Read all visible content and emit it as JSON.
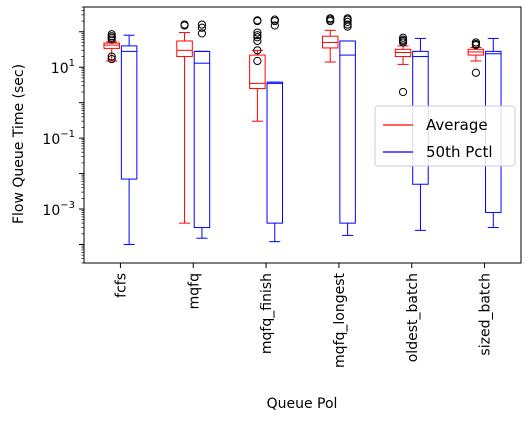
{
  "chart_data": {
    "type": "boxplot",
    "title": "",
    "xlabel": "Queue Pol",
    "ylabel": "Flow Queue Time (sec)",
    "yscale": "log",
    "ylim": [
      3e-05,
      500
    ],
    "ytick_values": [
      0.001,
      0.1,
      10
    ],
    "ytick_labels": [
      {
        "base": "10",
        "exp": "−3"
      },
      {
        "base": "10",
        "exp": "−1"
      },
      {
        "base": "10",
        "exp": "1"
      }
    ],
    "categories": [
      "fcfs",
      "mqfq",
      "mqfq_finish",
      "mqfq_longest",
      "oldest_batch",
      "sized_batch"
    ],
    "legend": {
      "position": "center-right"
    },
    "series": [
      {
        "name": "Average",
        "color": "#ff0000",
        "boxes": [
          {
            "whislo": 15,
            "q1": 34,
            "med": 42,
            "q3": 48,
            "whishi": 52,
            "fliers": [
              17,
              20,
              60,
              68,
              75,
              85
            ]
          },
          {
            "whislo": 0.0004,
            "q1": 20,
            "med": 30,
            "q3": 55,
            "whishi": 95,
            "fliers": [
              150,
              160
            ]
          },
          {
            "whislo": 0.3,
            "q1": 2.5,
            "med": 3.5,
            "q3": 22,
            "whishi": 30,
            "fliers": [
              15,
              30,
              55,
              70,
              80,
              95,
              200,
              210
            ]
          },
          {
            "whislo": 14,
            "q1": 35,
            "med": 50,
            "q3": 75,
            "whishi": 110,
            "fliers": [
              200,
              220,
              240
            ]
          },
          {
            "whislo": 12,
            "q1": 20,
            "med": 26,
            "q3": 32,
            "whishi": 40,
            "fliers": [
              2,
              50,
              55,
              60,
              68
            ]
          },
          {
            "whislo": 15,
            "q1": 22,
            "med": 27,
            "q3": 32,
            "whishi": 36,
            "fliers": [
              7,
              42,
              45,
              50
            ]
          }
        ]
      },
      {
        "name": "50th Pctl",
        "color": "#0000ff",
        "boxes": [
          {
            "whislo": 0.0001,
            "q1": 0.007,
            "med": 28,
            "q3": 40,
            "whishi": 80,
            "fliers": []
          },
          {
            "whislo": 0.00015,
            "q1": 0.0003,
            "med": 13,
            "q3": 28,
            "whishi": 28,
            "fliers": [
              90,
              130,
              160
            ]
          },
          {
            "whislo": 0.00012,
            "q1": 0.0004,
            "med": 3.5,
            "q3": 3.8,
            "whishi": 3.8,
            "fliers": [
              150,
              200,
              220
            ]
          },
          {
            "whislo": 0.00018,
            "q1": 0.0004,
            "med": 22,
            "q3": 55,
            "whishi": 55,
            "fliers": [
              140,
              160,
              190,
              220,
              240
            ]
          },
          {
            "whislo": 0.00025,
            "q1": 0.005,
            "med": 20,
            "q3": 28,
            "whishi": 65,
            "fliers": []
          },
          {
            "whislo": 0.0003,
            "q1": 0.0008,
            "med": 24,
            "q3": 28,
            "whishi": 65,
            "fliers": []
          }
        ]
      }
    ]
  }
}
